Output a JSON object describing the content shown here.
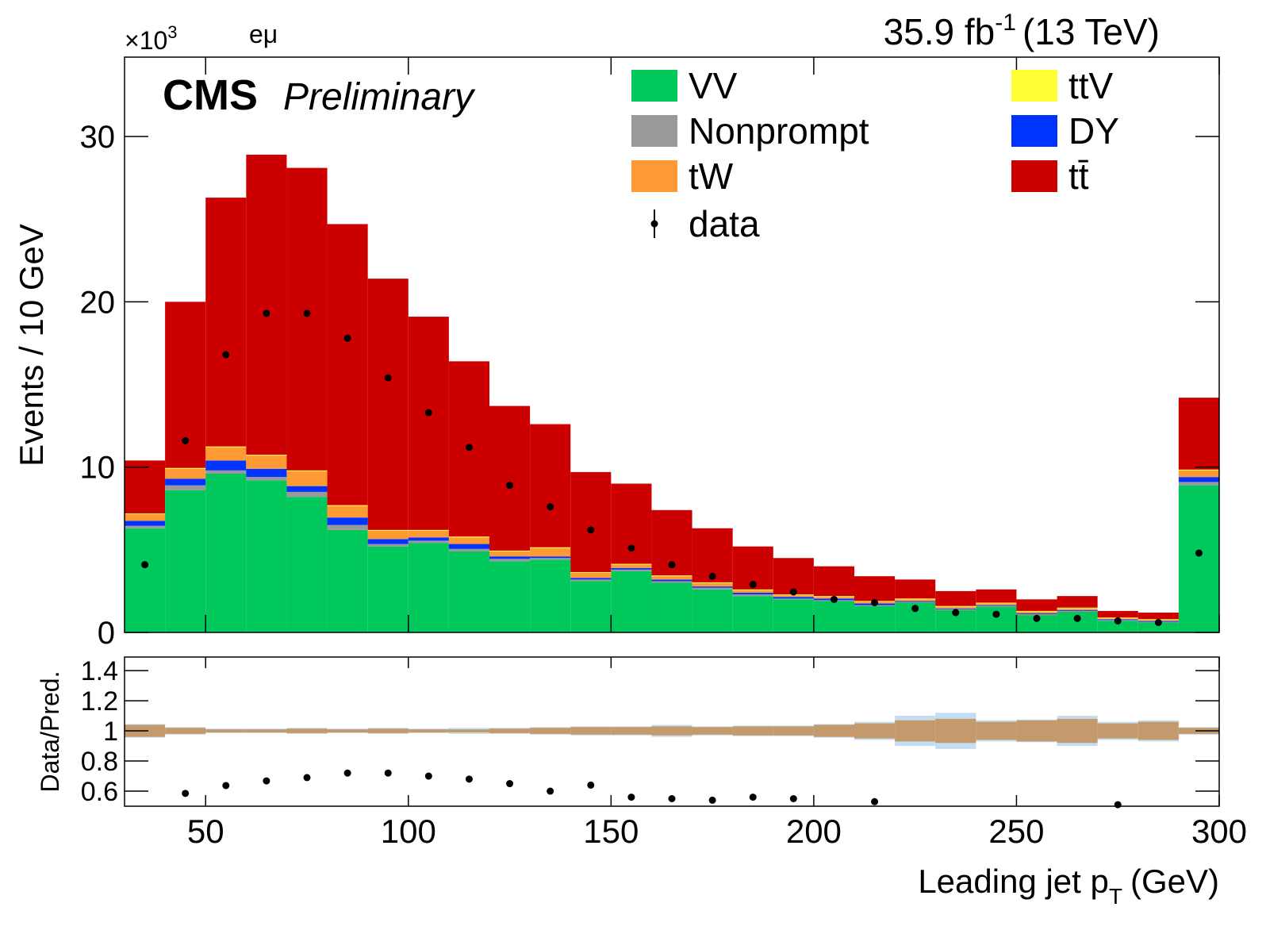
{
  "chart_data": {
    "type": "histogram",
    "channel": "eμ",
    "cms_label": "CMS",
    "cms_extra": "Preliminary",
    "lumi": {
      "text": "35.9 fb",
      "sup": "-1",
      "rest": "(13 TeV)"
    },
    "y_multiplier": {
      "text": "×10",
      "sup": "3"
    },
    "y_label": "Events / 10 GeV",
    "x_label": {
      "text": "Leading jet p",
      "sub": "T",
      "rest": "(GeV)"
    },
    "bins": [
      30,
      40,
      50,
      60,
      70,
      80,
      90,
      100,
      110,
      120,
      130,
      140,
      150,
      160,
      170,
      180,
      190,
      200,
      210,
      220,
      230,
      240,
      250,
      260,
      270,
      280,
      290,
      300
    ],
    "xlim": [
      30,
      300
    ],
    "xticks": [
      50,
      100,
      150,
      200,
      250,
      300
    ],
    "ylim": [
      0,
      34.8
    ],
    "yticks": [
      0,
      10,
      20,
      30
    ],
    "series": [
      {
        "name": "VV",
        "color": "#00c85a",
        "values": [
          6.3,
          8.6,
          9.6,
          9.2,
          8.2,
          6.2,
          5.2,
          5.4,
          4.9,
          4.3,
          4.4,
          3.1,
          3.7,
          3.0,
          2.6,
          2.2,
          2.0,
          1.9,
          1.6,
          1.8,
          1.35,
          1.55,
          1.05,
          1.25,
          0.7,
          0.6,
          8.9
        ]
      },
      {
        "name": "Nonprompt",
        "color": "#999999",
        "values": [
          0.15,
          0.3,
          0.2,
          0.2,
          0.3,
          0.3,
          0.15,
          0.15,
          0.15,
          0.15,
          0.1,
          0.1,
          0.1,
          0.1,
          0.1,
          0.1,
          0.05,
          0.05,
          0.05,
          0.05,
          0.05,
          0.05,
          0.05,
          0.05,
          0.05,
          0.05,
          0.2
        ]
      },
      {
        "name": "DY",
        "color": "#0033ff",
        "values": [
          0.3,
          0.4,
          0.6,
          0.5,
          0.35,
          0.45,
          0.3,
          0.2,
          0.3,
          0.15,
          0.1,
          0.1,
          0.1,
          0.1,
          0.08,
          0.1,
          0.1,
          0.1,
          0.1,
          0.05,
          0.05,
          0.05,
          0.05,
          0.05,
          0.05,
          0.05,
          0.3
        ]
      },
      {
        "name": "tW",
        "color": "#ff9933",
        "values": [
          0.4,
          0.6,
          0.8,
          0.8,
          0.9,
          0.7,
          0.5,
          0.4,
          0.4,
          0.3,
          0.5,
          0.3,
          0.2,
          0.2,
          0.2,
          0.15,
          0.1,
          0.1,
          0.1,
          0.1,
          0.1,
          0.1,
          0.1,
          0.1,
          0.05,
          0.05,
          0.4
        ]
      },
      {
        "name": "ttV",
        "color": "#ffff33",
        "values": [
          0.05,
          0.05,
          0.05,
          0.05,
          0.05,
          0.05,
          0.05,
          0.05,
          0.05,
          0.05,
          0.05,
          0.05,
          0.05,
          0.05,
          0.05,
          0.05,
          0.05,
          0.05,
          0.05,
          0.05,
          0.05,
          0.05,
          0.05,
          0.05,
          0.05,
          0.05,
          0.05
        ]
      },
      {
        "name": "tt̄",
        "color": "#cc0000",
        "values": [
          3.2,
          10.05,
          15.05,
          18.15,
          18.3,
          17.0,
          15.2,
          12.9,
          10.6,
          8.75,
          7.45,
          6.05,
          4.85,
          3.95,
          3.27,
          2.6,
          2.2,
          1.8,
          1.5,
          1.15,
          0.9,
          0.8,
          0.7,
          0.7,
          0.4,
          0.4,
          4.35
        ]
      }
    ],
    "data": {
      "name": "data",
      "color": "#000000",
      "values": [
        4.1,
        11.6,
        16.8,
        19.3,
        19.3,
        17.8,
        15.4,
        13.3,
        11.2,
        8.9,
        7.6,
        6.2,
        5.1,
        4.1,
        3.4,
        2.9,
        2.45,
        2.0,
        1.8,
        1.45,
        1.2,
        1.1,
        0.85,
        0.85,
        0.7,
        0.6,
        4.8
      ]
    },
    "ratio": {
      "y_label": "Data/Pred.",
      "ylim": [
        0.5,
        1.49
      ],
      "yticks": [
        0.6,
        0.8,
        1,
        1.2,
        1.4
      ],
      "values": [
        null,
        0.585,
        0.637,
        0.668,
        0.69,
        0.72,
        0.72,
        0.7,
        0.68,
        0.65,
        0.6,
        0.64,
        0.56,
        0.55,
        0.54,
        0.56,
        0.55,
        null,
        0.53,
        null,
        null,
        null,
        null,
        null,
        0.51,
        null,
        null
      ],
      "inner_color": "#c49a6c",
      "outer_color": "#c5ddf0",
      "inner_unc": [
        0.04,
        0.02,
        0.01,
        0.01,
        0.015,
        0.01,
        0.015,
        0.01,
        0.01,
        0.015,
        0.02,
        0.025,
        0.025,
        0.03,
        0.025,
        0.03,
        0.03,
        0.04,
        0.05,
        0.07,
        0.08,
        0.06,
        0.07,
        0.08,
        0.05,
        0.06,
        0.02
      ],
      "outer_unc": [
        0.045,
        0.025,
        0.015,
        0.015,
        0.02,
        0.015,
        0.02,
        0.015,
        0.02,
        0.02,
        0.025,
        0.03,
        0.03,
        0.04,
        0.03,
        0.035,
        0.035,
        0.045,
        0.06,
        0.1,
        0.12,
        0.07,
        0.075,
        0.1,
        0.06,
        0.07,
        0.025
      ]
    }
  }
}
